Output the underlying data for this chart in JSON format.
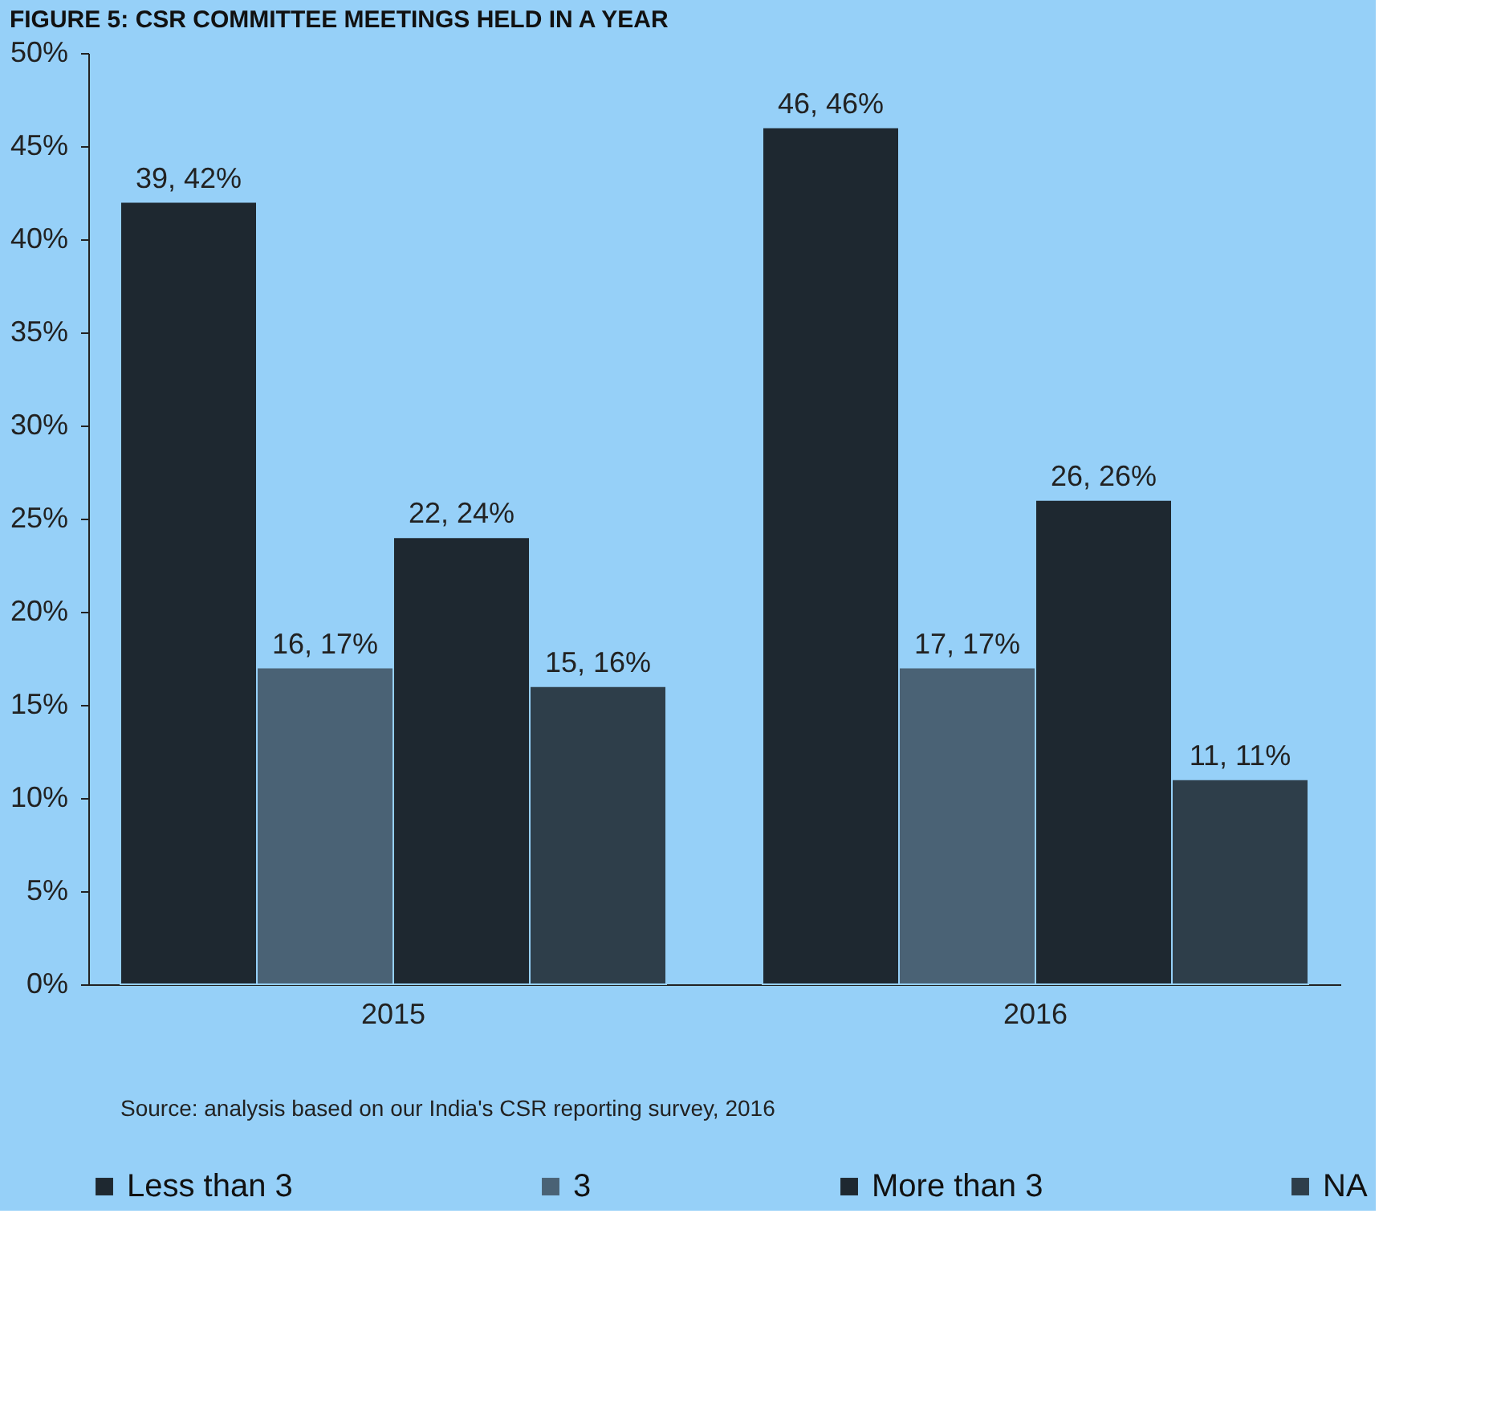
{
  "chart_data": {
    "type": "bar",
    "title": "FIGURE 5: CSR COMMITTEE MEETINGS HELD IN A YEAR",
    "categories": [
      "2015",
      "2016"
    ],
    "series": [
      {
        "name": "Less than 3",
        "color": "#1e2830",
        "values": [
          42,
          46
        ],
        "value_labels": [
          "39, 42%",
          "46, 46%"
        ]
      },
      {
        "name": "3",
        "color": "#4a6275",
        "values": [
          17,
          17
        ],
        "value_labels": [
          "16, 17%",
          "17, 17%"
        ]
      },
      {
        "name": "More than 3",
        "color": "#1e2830",
        "values": [
          24,
          26
        ],
        "value_labels": [
          "22, 24%",
          "26, 26%"
        ]
      },
      {
        "name": "NA",
        "color": "#2e3e4a",
        "values": [
          16,
          11
        ],
        "value_labels": [
          "15, 16%",
          "11, 11%"
        ]
      }
    ],
    "ylim": [
      0,
      50
    ],
    "yticks": [
      {
        "value": 0,
        "label": "0%"
      },
      {
        "value": 5,
        "label": "5%"
      },
      {
        "value": 10,
        "label": "10%"
      },
      {
        "value": 15,
        "label": "15%"
      },
      {
        "value": 20,
        "label": "20%"
      },
      {
        "value": 25,
        "label": "25%"
      },
      {
        "value": 30,
        "label": "30%"
      },
      {
        "value": 35,
        "label": "35%"
      },
      {
        "value": 40,
        "label": "40%"
      },
      {
        "value": 45,
        "label": "45%"
      },
      {
        "value": 50,
        "label": "50%"
      }
    ],
    "grid": false,
    "legend": "bottom",
    "annotations": [
      "Source: analysis based on our India's CSR reporting survey, 2016"
    ]
  }
}
